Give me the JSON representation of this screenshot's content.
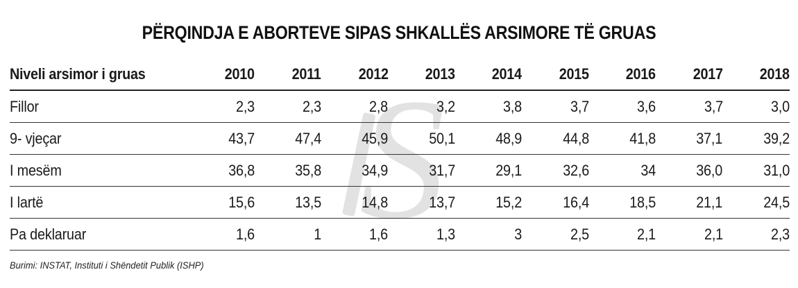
{
  "title": "PËRQINDJA E ABORTEVE SIPAS SHKALLËS ARSIMORE TË GRUAS",
  "source": "Burimi: INSTAT, Instituti i Shëndetit Publik (ISHP)",
  "table": {
    "header_label": "Niveli arsimor i gruas",
    "years": [
      "2010",
      "2011",
      "2012",
      "2013",
      "2014",
      "2015",
      "2016",
      "2017",
      "2018"
    ],
    "rows": [
      {
        "label": "Fillor",
        "values": [
          "2,3",
          "2,3",
          "2,8",
          "3,2",
          "3,8",
          "3,7",
          "3,6",
          "3,7",
          "3,0"
        ]
      },
      {
        "label": "9- vjeçar",
        "values": [
          "43,7",
          "47,4",
          "45,9",
          "50,1",
          "48,9",
          "44,8",
          "41,8",
          "37,1",
          "39,2"
        ]
      },
      {
        "label": "I mesëm",
        "values": [
          "36,8",
          "35,8",
          "34,9",
          "31,7",
          "29,1",
          "32,6",
          "34",
          "36,0",
          "31,0"
        ]
      },
      {
        "label": "I lartë",
        "values": [
          "15,6",
          "13,5",
          "14,8",
          "13,7",
          "15,2",
          "16,4",
          "18,5",
          "21,1",
          "24,5"
        ]
      },
      {
        "label": "Pa deklaruar",
        "values": [
          "1,6",
          "1",
          "1,6",
          "1,3",
          "3",
          "2,5",
          "2,1",
          "2,1",
          "2,3"
        ]
      }
    ]
  },
  "chart_data": {
    "type": "table",
    "title": "PËRQINDJA E ABORTEVE SIPAS SHKALLËS ARSIMORE TË GRUAS",
    "row_header": "Niveli arsimor i gruas",
    "columns": [
      2010,
      2011,
      2012,
      2013,
      2014,
      2015,
      2016,
      2017,
      2018
    ],
    "rows": [
      {
        "name": "Fillor",
        "values": [
          2.3,
          2.3,
          2.8,
          3.2,
          3.8,
          3.7,
          3.6,
          3.7,
          3.0
        ]
      },
      {
        "name": "9- vjeçar",
        "values": [
          43.7,
          47.4,
          45.9,
          50.1,
          48.9,
          44.8,
          41.8,
          37.1,
          39.2
        ]
      },
      {
        "name": "I mesëm",
        "values": [
          36.8,
          35.8,
          34.9,
          31.7,
          29.1,
          32.6,
          34,
          36.0,
          31.0
        ]
      },
      {
        "name": "I lartë",
        "values": [
          15.6,
          13.5,
          14.8,
          13.7,
          15.2,
          16.4,
          18.5,
          21.1,
          24.5
        ]
      },
      {
        "name": "Pa deklaruar",
        "values": [
          1.6,
          1,
          1.6,
          1.3,
          3,
          2.5,
          2.1,
          2.1,
          2.3
        ]
      }
    ]
  },
  "watermark": {
    "icon": "dollar-s-watermark-icon",
    "color": "#d9d9d9"
  }
}
